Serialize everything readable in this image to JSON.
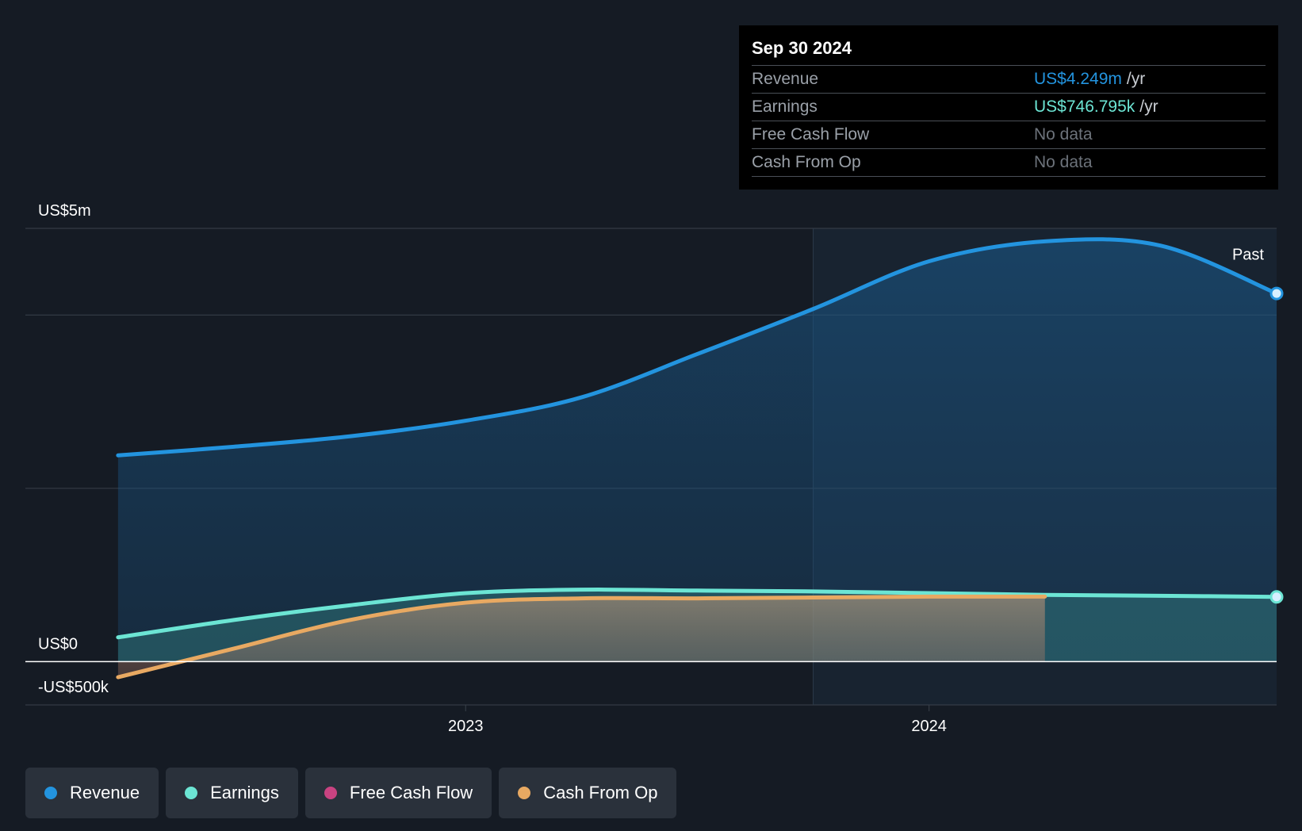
{
  "colors": {
    "revenue": "#2394df",
    "earnings": "#6ce5d4",
    "free_cash_flow": "#c94381",
    "cash_from_op": "#e8a962",
    "background": "#151b24"
  },
  "tooltip": {
    "date": "Sep 30 2024",
    "rows": [
      {
        "label": "Revenue",
        "value": "US$4.249m",
        "unit": "/yr",
        "color": "#2394df"
      },
      {
        "label": "Earnings",
        "value": "US$746.795k",
        "unit": "/yr",
        "color": "#6ce5d4"
      },
      {
        "label": "Free Cash Flow",
        "value": "No data",
        "unit": ""
      },
      {
        "label": "Cash From Op",
        "value": "No data",
        "unit": ""
      }
    ]
  },
  "legend": [
    {
      "label": "Revenue",
      "color": "#2394df"
    },
    {
      "label": "Earnings",
      "color": "#6ce5d4"
    },
    {
      "label": "Free Cash Flow",
      "color": "#c94381"
    },
    {
      "label": "Cash From Op",
      "color": "#e8a962"
    }
  ],
  "chart_data": {
    "type": "area",
    "title": "",
    "xlabel": "",
    "ylabel": "",
    "x_ticks": [
      {
        "label": "2023",
        "value": 2023.0
      },
      {
        "label": "2024",
        "value": 2024.0
      }
    ],
    "y_ticks": [
      {
        "label": "US$5m",
        "value": 5000000
      },
      {
        "label": "US$0",
        "value": 0
      },
      {
        "label": "-US$500k",
        "value": -500000
      }
    ],
    "xlim": [
      2022.05,
      2024.75
    ],
    "ylim": [
      -500000,
      5000000
    ],
    "past_label": "Past",
    "past_start": 2023.75,
    "grid": true,
    "legend_position": "bottom-left",
    "series": [
      {
        "name": "Revenue",
        "color": "#2394df",
        "x": [
          2022.25,
          2022.5,
          2022.75,
          2023.0,
          2023.25,
          2023.5,
          2023.75,
          2024.0,
          2024.25,
          2024.5,
          2024.75
        ],
        "y": [
          2380000,
          2480000,
          2600000,
          2780000,
          3050000,
          3550000,
          4070000,
          4620000,
          4850000,
          4800000,
          4249000
        ]
      },
      {
        "name": "Earnings",
        "color": "#6ce5d4",
        "x": [
          2022.25,
          2022.5,
          2022.75,
          2023.0,
          2023.25,
          2023.5,
          2023.75,
          2024.0,
          2024.25,
          2024.5,
          2024.75
        ],
        "y": [
          280000,
          480000,
          650000,
          790000,
          830000,
          820000,
          810000,
          790000,
          770000,
          760000,
          746795
        ]
      },
      {
        "name": "Cash From Op",
        "color": "#e8a962",
        "x": [
          2022.25,
          2022.5,
          2022.75,
          2023.0,
          2023.25,
          2023.5,
          2023.75,
          2024.0,
          2024.25
        ],
        "y": [
          -180000,
          150000,
          480000,
          680000,
          730000,
          730000,
          740000,
          750000,
          750000
        ]
      }
    ]
  }
}
